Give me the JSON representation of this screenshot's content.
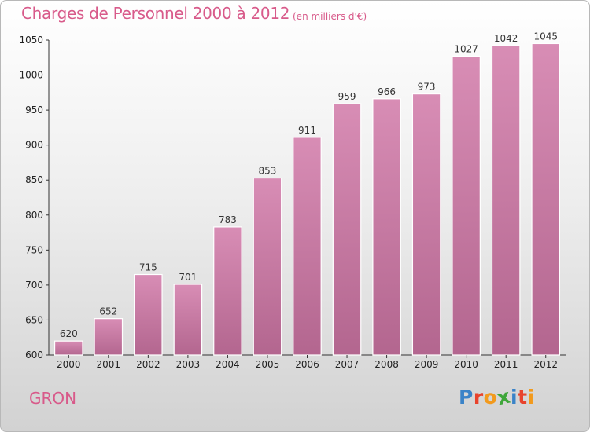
{
  "title": "Charges de Personnel 2000 à 2012",
  "subtitle": "(en milliers d'€)",
  "commune": "GRON",
  "logo": {
    "text": "Proxiti",
    "letters": [
      {
        "ch": "P",
        "color": "#3a83c8"
      },
      {
        "ch": "r",
        "color": "#e8432c"
      },
      {
        "ch": "o",
        "color": "#f29a1d"
      },
      {
        "ch": "x",
        "color": "#3ea63a"
      },
      {
        "ch": "i",
        "color": "#3a83c8"
      },
      {
        "ch": "t",
        "color": "#e8432c"
      },
      {
        "ch": "i",
        "color": "#f29a1d"
      }
    ]
  },
  "colors": {
    "bar": "#d88db5",
    "bar_dark": "#b3668f",
    "title": "#d85a8a"
  },
  "chart_data": {
    "type": "bar",
    "title": "Charges de Personnel 2000 à 2012",
    "subtitle": "(en milliers d'€)",
    "xlabel": "",
    "ylabel": "",
    "categories": [
      "2000",
      "2001",
      "2002",
      "2003",
      "2004",
      "2005",
      "2006",
      "2007",
      "2008",
      "2009",
      "2010",
      "2011",
      "2012"
    ],
    "values": [
      620,
      652,
      715,
      701,
      783,
      853,
      911,
      959,
      966,
      973,
      1027,
      1042,
      1045
    ],
    "ylim": [
      600,
      1050
    ],
    "yticks": [
      600,
      650,
      700,
      750,
      800,
      850,
      900,
      950,
      1000,
      1050
    ],
    "grid": false,
    "legend": "none"
  }
}
